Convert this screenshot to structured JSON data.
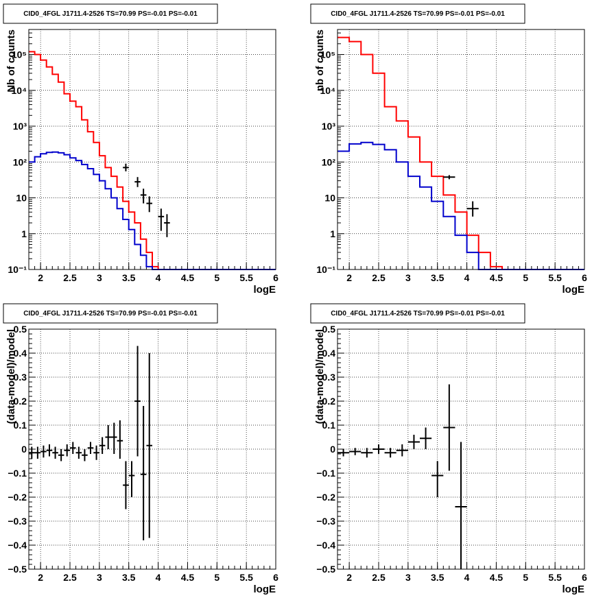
{
  "colors": {
    "model_total": "#ff0000",
    "model_bkg": "#0000cc",
    "data": "#000000"
  },
  "chart_data": [
    {
      "type": "line",
      "title": "CID0_4FGL J1711.4-2526 TS=70.99 PS=-0.01 PS=-0.01",
      "xlabel": "logE",
      "ylabel": "Nb of counts",
      "xlim": [
        1.8,
        6
      ],
      "ylim": [
        0.1,
        500000
      ],
      "yscale": "log",
      "grid": true,
      "xticks": [
        2,
        2.5,
        3,
        3.5,
        4,
        4.5,
        5,
        5.5,
        6
      ],
      "xtick_labels": [
        "2",
        "2.5",
        "3",
        "3.5",
        "4",
        "4.5",
        "5",
        "5.5",
        "6"
      ],
      "yticks": [
        0.1,
        1,
        10,
        100,
        1000,
        10000,
        100000
      ],
      "ytick_labels": [
        "10⁻¹",
        "1",
        "10",
        "10²",
        "10³",
        "10⁴",
        "10⁵"
      ],
      "bin_edges": [
        1.8,
        1.9,
        2.0,
        2.1,
        2.2,
        2.3,
        2.4,
        2.5,
        2.6,
        2.7,
        2.8,
        2.9,
        3.0,
        3.1,
        3.2,
        3.3,
        3.4,
        3.5,
        3.6,
        3.7,
        3.8,
        3.9,
        4.0,
        4.1,
        4.2,
        4.3,
        4.4,
        4.5,
        4.6,
        4.7,
        4.8,
        4.9,
        5.0,
        5.1,
        5.2,
        5.3,
        5.4,
        5.5,
        5.6,
        5.7,
        5.8,
        5.9,
        6.0
      ],
      "series": [
        {
          "color": "#ff0000",
          "values": [
            120000,
            100000,
            70000,
            45000,
            28000,
            17000,
            8000,
            5000,
            3500,
            1500,
            700,
            350,
            150,
            70,
            40,
            20,
            8,
            4,
            2,
            0.7,
            0.3,
            0.12,
            0.1,
            0.1,
            0.1,
            0.1,
            0.1,
            0.1,
            0.1,
            0.1,
            0.1,
            0.1,
            0.1,
            0.1,
            0.1,
            0.1,
            0.1,
            0.1,
            0.1,
            0.1,
            0.1,
            0.1
          ]
        },
        {
          "color": "#0000cc",
          "values": [
            100,
            140,
            170,
            185,
            190,
            180,
            160,
            130,
            110,
            85,
            65,
            45,
            30,
            18,
            10,
            5,
            2.5,
            1.3,
            0.5,
            0.25,
            0.12,
            0.1,
            0.1,
            0.1,
            0.1,
            0.1,
            0.1,
            0.1,
            0.1,
            0.1,
            0.1,
            0.1,
            0.1,
            0.1,
            0.1,
            0.1,
            0.1,
            0.1,
            0.1,
            0.1,
            0.1,
            0.1
          ]
        }
      ],
      "points": [
        {
          "x": 3.45,
          "y": 70,
          "xerr": 0.05,
          "ylo": 55,
          "yhi": 90
        },
        {
          "x": 3.65,
          "y": 28,
          "xerr": 0.05,
          "ylo": 20,
          "yhi": 38
        },
        {
          "x": 3.75,
          "y": 12,
          "xerr": 0.05,
          "ylo": 7,
          "yhi": 18
        },
        {
          "x": 3.85,
          "y": 7,
          "xerr": 0.05,
          "ylo": 4,
          "yhi": 11
        },
        {
          "x": 4.05,
          "y": 3,
          "xerr": 0.05,
          "ylo": 1.2,
          "yhi": 5
        },
        {
          "x": 4.15,
          "y": 2,
          "xerr": 0.05,
          "ylo": 0.8,
          "yhi": 3.5
        }
      ]
    },
    {
      "type": "line",
      "title": "CID0_4FGL J1711.4-2526 TS=70.99 PS=-0.01 PS=-0.01",
      "xlabel": "logE",
      "ylabel": "nb of counts",
      "xlim": [
        1.8,
        6
      ],
      "ylim": [
        0.1,
        500000
      ],
      "yscale": "log",
      "grid": true,
      "xticks": [
        2,
        2.5,
        3,
        3.5,
        4,
        4.5,
        5,
        5.5,
        6
      ],
      "xtick_labels": [
        "2",
        "2.5",
        "3",
        "3.5",
        "4",
        "4.5",
        "5",
        "5.5",
        "6"
      ],
      "yticks": [
        0.1,
        1,
        10,
        100,
        1000,
        10000,
        100000
      ],
      "ytick_labels": [
        "10⁻¹",
        "1",
        "10",
        "10²",
        "10³",
        "10⁴",
        "10⁵"
      ],
      "bin_edges": [
        1.8,
        2.0,
        2.2,
        2.4,
        2.6,
        2.8,
        3.0,
        3.2,
        3.4,
        3.6,
        3.8,
        4.0,
        4.2,
        4.4,
        4.6,
        4.8,
        5.0,
        5.2,
        5.4,
        5.6,
        5.8,
        6.0
      ],
      "series": [
        {
          "color": "#ff0000",
          "values": [
            300000,
            230000,
            100000,
            30000,
            3500,
            1400,
            500,
            100,
            40,
            12,
            4,
            0.9,
            0.3,
            0.12,
            0.1,
            0.1,
            0.1,
            0.1,
            0.1,
            0.1,
            0.1
          ]
        },
        {
          "color": "#0000cc",
          "values": [
            200,
            320,
            350,
            310,
            220,
            100,
            40,
            20,
            8,
            3,
            0.9,
            0.3,
            0.1,
            0.1,
            0.1,
            0.1,
            0.1,
            0.1,
            0.1,
            0.1,
            0.1
          ]
        }
      ],
      "points": [
        {
          "x": 3.7,
          "y": 38,
          "xerr": 0.1,
          "ylo": 33,
          "yhi": 43
        },
        {
          "x": 4.1,
          "y": 5,
          "xerr": 0.1,
          "ylo": 3,
          "yhi": 8
        }
      ]
    },
    {
      "type": "scatter",
      "title": "CID0_4FGL J1711.4-2526 TS=70.99 PS=-0.01 PS=-0.01",
      "xlabel": "logE",
      "ylabel": "(data-model)/model",
      "xlim": [
        1.8,
        6
      ],
      "ylim": [
        -0.5,
        0.5
      ],
      "grid": true,
      "xticks": [
        2,
        2.5,
        3,
        3.5,
        4,
        4.5,
        5,
        5.5,
        6
      ],
      "xtick_labels": [
        "2",
        "2.5",
        "3",
        "3.5",
        "4",
        "4.5",
        "5",
        "5.5",
        "6"
      ],
      "yticks": [
        -0.5,
        -0.4,
        -0.3,
        -0.2,
        -0.1,
        0,
        0.1,
        0.2,
        0.3,
        0.4,
        0.5
      ],
      "ytick_labels": [
        "−0.5",
        "−0.4",
        "−0.3",
        "−0.2",
        "−0.1",
        "0",
        "0.1",
        "0.2",
        "0.3",
        "0.4",
        "0.5"
      ],
      "points": [
        {
          "x": 1.85,
          "y": -0.015,
          "xerr": 0.05,
          "ylo": -0.04,
          "yhi": 0.01
        },
        {
          "x": 1.95,
          "y": -0.015,
          "xerr": 0.05,
          "ylo": -0.04,
          "yhi": 0.01
        },
        {
          "x": 2.05,
          "y": -0.01,
          "xerr": 0.05,
          "ylo": -0.035,
          "yhi": 0.015
        },
        {
          "x": 2.15,
          "y": -0.005,
          "xerr": 0.05,
          "ylo": -0.03,
          "yhi": 0.02
        },
        {
          "x": 2.25,
          "y": -0.015,
          "xerr": 0.05,
          "ylo": -0.04,
          "yhi": 0.01
        },
        {
          "x": 2.35,
          "y": -0.025,
          "xerr": 0.05,
          "ylo": -0.05,
          "yhi": 0.0
        },
        {
          "x": 2.45,
          "y": -0.005,
          "xerr": 0.05,
          "ylo": -0.03,
          "yhi": 0.02
        },
        {
          "x": 2.55,
          "y": 0.005,
          "xerr": 0.05,
          "ylo": -0.02,
          "yhi": 0.03
        },
        {
          "x": 2.65,
          "y": -0.015,
          "xerr": 0.05,
          "ylo": -0.04,
          "yhi": 0.01
        },
        {
          "x": 2.75,
          "y": -0.025,
          "xerr": 0.05,
          "ylo": -0.05,
          "yhi": 0.0
        },
        {
          "x": 2.85,
          "y": 0.005,
          "xerr": 0.05,
          "ylo": -0.02,
          "yhi": 0.03
        },
        {
          "x": 2.95,
          "y": -0.015,
          "xerr": 0.05,
          "ylo": -0.045,
          "yhi": 0.015
        },
        {
          "x": 3.05,
          "y": 0.015,
          "xerr": 0.05,
          "ylo": -0.02,
          "yhi": 0.05
        },
        {
          "x": 3.15,
          "y": 0.05,
          "xerr": 0.05,
          "ylo": 0.0,
          "yhi": 0.1
        },
        {
          "x": 3.25,
          "y": 0.05,
          "xerr": 0.05,
          "ylo": -0.02,
          "yhi": 0.11
        },
        {
          "x": 3.35,
          "y": 0.035,
          "xerr": 0.05,
          "ylo": -0.04,
          "yhi": 0.12
        },
        {
          "x": 3.45,
          "y": -0.15,
          "xerr": 0.05,
          "ylo": -0.25,
          "yhi": -0.05
        },
        {
          "x": 3.55,
          "y": -0.11,
          "xerr": 0.05,
          "ylo": -0.2,
          "yhi": -0.05
        },
        {
          "x": 3.65,
          "y": 0.2,
          "xerr": 0.05,
          "ylo": -0.03,
          "yhi": 0.43
        },
        {
          "x": 3.75,
          "y": -0.105,
          "xerr": 0.05,
          "ylo": -0.38,
          "yhi": 0.18
        },
        {
          "x": 3.85,
          "y": 0.015,
          "xerr": 0.05,
          "ylo": -0.37,
          "yhi": 0.4
        }
      ]
    },
    {
      "type": "scatter",
      "title": "CID0_4FGL J1711.4-2526 TS=70.99 PS=-0.01 PS=-0.01",
      "xlabel": "logE",
      "ylabel": "(data-model)/model",
      "xlim": [
        1.8,
        6
      ],
      "ylim": [
        -0.5,
        0.5
      ],
      "grid": true,
      "xticks": [
        2,
        2.5,
        3,
        3.5,
        4,
        4.5,
        5,
        5.5,
        6
      ],
      "xtick_labels": [
        "2",
        "2.5",
        "3",
        "3.5",
        "4",
        "4.5",
        "5",
        "5.5",
        "6"
      ],
      "yticks": [
        -0.5,
        -0.4,
        -0.3,
        -0.2,
        -0.1,
        0,
        0.1,
        0.2,
        0.3,
        0.4,
        0.5
      ],
      "ytick_labels": [
        "−0.5",
        "−0.4",
        "−0.3",
        "−0.2",
        "−0.1",
        "0",
        "0.1",
        "0.2",
        "0.3",
        "0.4",
        "0.5"
      ],
      "points": [
        {
          "x": 1.9,
          "y": -0.015,
          "xerr": 0.1,
          "ylo": -0.03,
          "yhi": 0.0
        },
        {
          "x": 2.1,
          "y": -0.01,
          "xerr": 0.1,
          "ylo": -0.025,
          "yhi": 0.005
        },
        {
          "x": 2.3,
          "y": -0.015,
          "xerr": 0.1,
          "ylo": -0.035,
          "yhi": 0.005
        },
        {
          "x": 2.5,
          "y": 0.0,
          "xerr": 0.1,
          "ylo": -0.02,
          "yhi": 0.02
        },
        {
          "x": 2.7,
          "y": -0.015,
          "xerr": 0.1,
          "ylo": -0.035,
          "yhi": 0.005
        },
        {
          "x": 2.9,
          "y": -0.005,
          "xerr": 0.1,
          "ylo": -0.03,
          "yhi": 0.02
        },
        {
          "x": 3.1,
          "y": 0.03,
          "xerr": 0.1,
          "ylo": 0.0,
          "yhi": 0.06
        },
        {
          "x": 3.3,
          "y": 0.045,
          "xerr": 0.1,
          "ylo": 0.0,
          "yhi": 0.09
        },
        {
          "x": 3.5,
          "y": -0.11,
          "xerr": 0.1,
          "ylo": -0.2,
          "yhi": -0.05
        },
        {
          "x": 3.7,
          "y": 0.09,
          "xerr": 0.1,
          "ylo": -0.09,
          "yhi": 0.27
        },
        {
          "x": 3.9,
          "y": -0.24,
          "xerr": 0.1,
          "ylo": -0.5,
          "yhi": 0.03
        }
      ]
    }
  ]
}
